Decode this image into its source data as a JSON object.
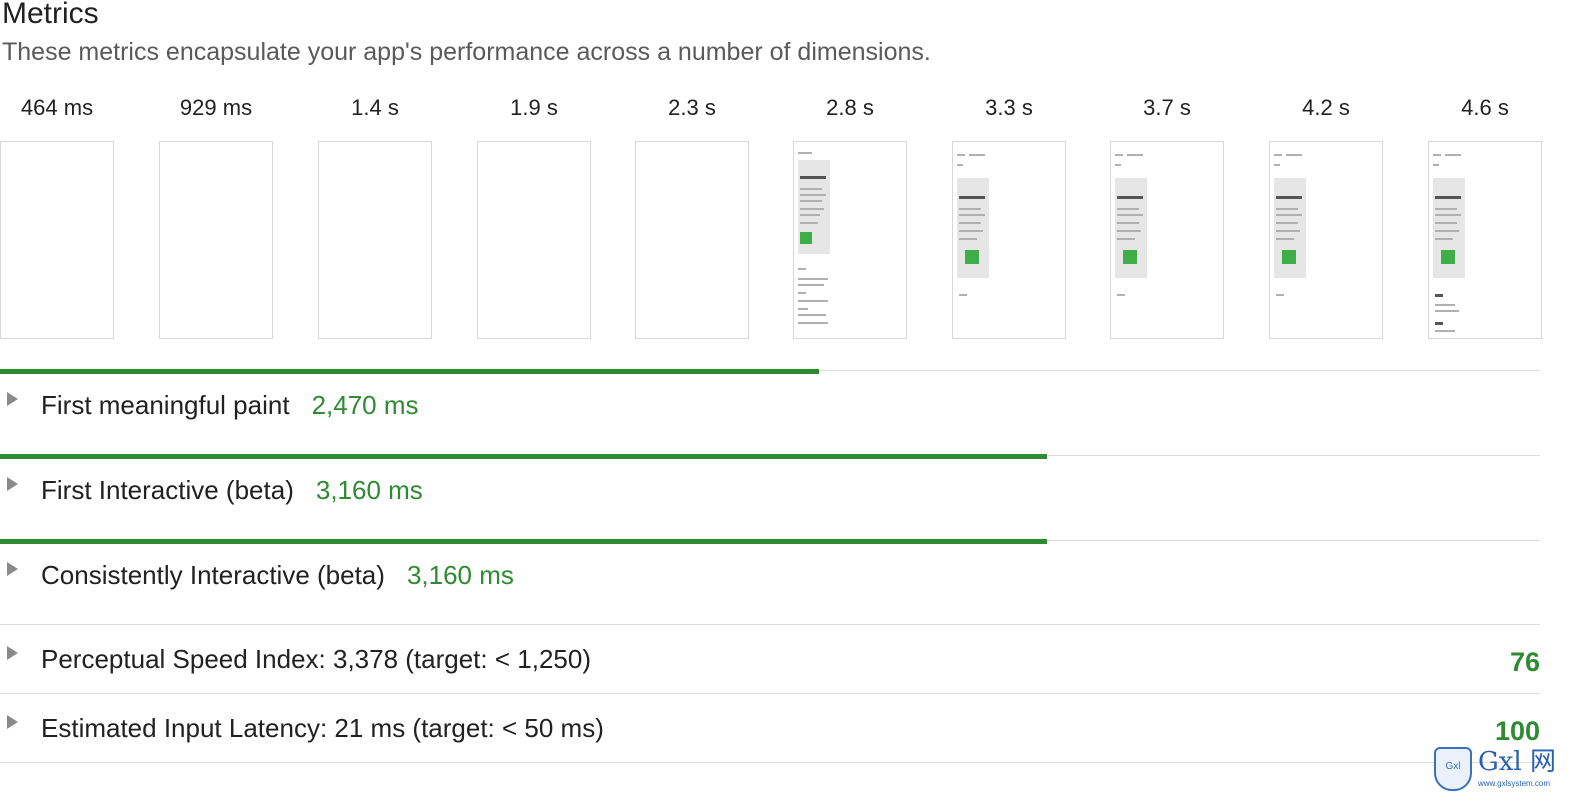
{
  "header": {
    "title": "Metrics",
    "subtitle": "These metrics encapsulate your app's performance across a number of dimensions."
  },
  "filmstrip": {
    "frames": [
      {
        "time": "464 ms",
        "state": "blank"
      },
      {
        "time": "929 ms",
        "state": "blank"
      },
      {
        "time": "1.4 s",
        "state": "blank"
      },
      {
        "time": "1.9 s",
        "state": "blank"
      },
      {
        "time": "2.3 s",
        "state": "blank"
      },
      {
        "time": "2.8 s",
        "state": "partial"
      },
      {
        "time": "3.3 s",
        "state": "loaded"
      },
      {
        "time": "3.7 s",
        "state": "loaded"
      },
      {
        "time": "4.2 s",
        "state": "loaded"
      },
      {
        "time": "4.6 s",
        "state": "complete"
      }
    ]
  },
  "metrics": [
    {
      "label": "First meaningful paint",
      "value": "2,470 ms",
      "bar_fraction": 0.532
    },
    {
      "label": "First Interactive (beta)",
      "value": "3,160 ms",
      "bar_fraction": 0.68
    },
    {
      "label": "Consistently Interactive (beta)",
      "value": "3,160 ms",
      "bar_fraction": 0.68
    },
    {
      "label": "Perceptual Speed Index: 3,378 (target: < 1,250)",
      "value": "",
      "score": "76"
    },
    {
      "label": "Estimated Input Latency: 21 ms (target: < 50 ms)",
      "value": "",
      "score": "100"
    }
  ],
  "watermark": {
    "shield_text": "Gxl",
    "brand": "Gxl 网",
    "site": "www.gxlsystem.com"
  },
  "colors": {
    "accent_green": "#2e8b32",
    "rule_gray": "#dcdcdc",
    "caret_gray": "#8a8a8a"
  }
}
